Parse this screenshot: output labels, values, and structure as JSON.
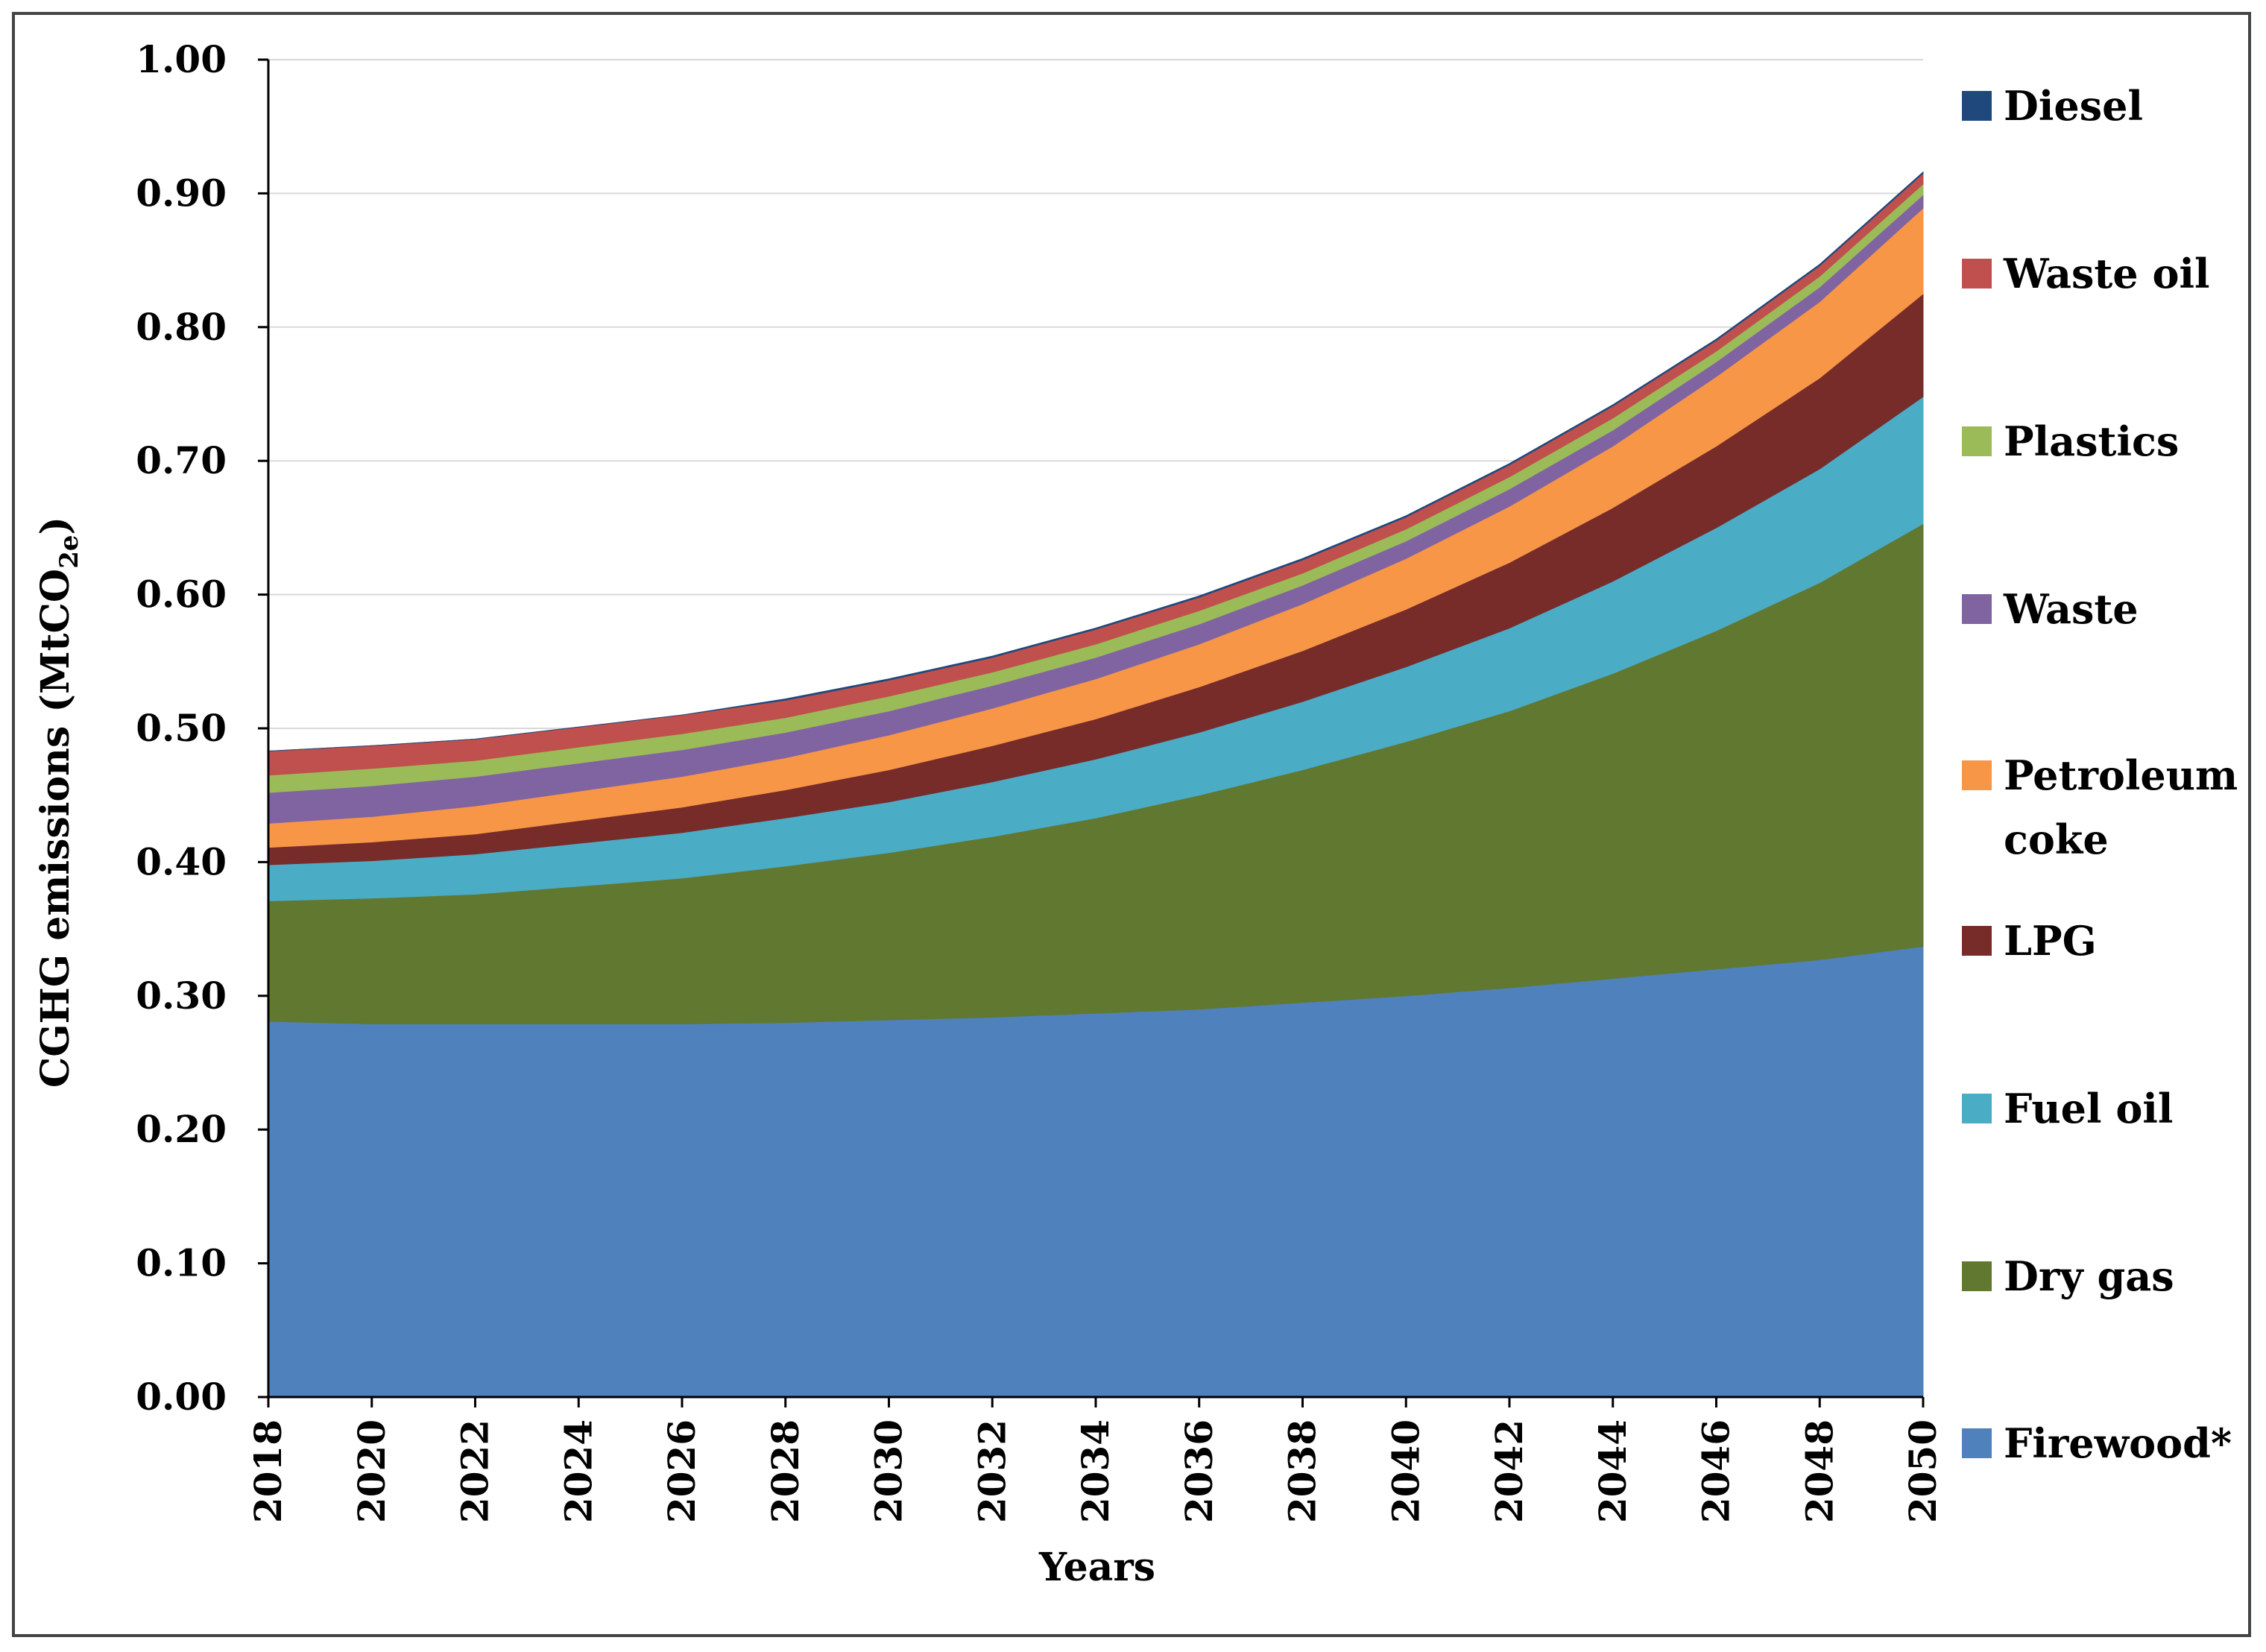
{
  "chart_data": {
    "type": "area",
    "stacked": true,
    "title": "",
    "xlabel": "Years",
    "ylabel": "CGHG emissions (MtCO",
    "ylabel_sub": "2e",
    "ylabel_close": ")",
    "ylim": [
      0,
      1.0
    ],
    "xlim": [
      2018,
      2050
    ],
    "grid": true,
    "legend_position": "right",
    "y_ticks": [
      "0.00",
      "0.10",
      "0.20",
      "0.30",
      "0.40",
      "0.50",
      "0.60",
      "0.70",
      "0.80",
      "0.90",
      "1.00"
    ],
    "x_ticks": [
      "2018",
      "2020",
      "2022",
      "2024",
      "2026",
      "2028",
      "2030",
      "2032",
      "2034",
      "2036",
      "2038",
      "2040",
      "2042",
      "2044",
      "2046",
      "2048",
      "2050"
    ],
    "x": [
      2018,
      2020,
      2022,
      2024,
      2026,
      2028,
      2030,
      2032,
      2034,
      2036,
      2038,
      2040,
      2042,
      2044,
      2046,
      2048,
      2050
    ],
    "series": [
      {
        "name": "Firewood*",
        "color": "#4F81BD",
        "values": [
          0.281,
          0.279,
          0.279,
          0.279,
          0.279,
          0.28,
          0.282,
          0.284,
          0.287,
          0.29,
          0.295,
          0.3,
          0.306,
          0.313,
          0.32,
          0.327,
          0.337
        ]
      },
      {
        "name": "Dry gas",
        "color": "#617830",
        "values": [
          0.09,
          0.094,
          0.097,
          0.103,
          0.109,
          0.117,
          0.125,
          0.135,
          0.146,
          0.16,
          0.174,
          0.19,
          0.207,
          0.228,
          0.253,
          0.282,
          0.316
        ]
      },
      {
        "name": "Fuel oil",
        "color": "#4BACC6",
        "values": [
          0.027,
          0.028,
          0.03,
          0.032,
          0.034,
          0.036,
          0.038,
          0.041,
          0.044,
          0.047,
          0.051,
          0.056,
          0.062,
          0.069,
          0.077,
          0.085,
          0.095
        ]
      },
      {
        "name": "LPG",
        "color": "#772C2A",
        "values": [
          0.013,
          0.014,
          0.015,
          0.017,
          0.019,
          0.021,
          0.024,
          0.027,
          0.03,
          0.034,
          0.038,
          0.043,
          0.049,
          0.055,
          0.061,
          0.068,
          0.077
        ]
      },
      {
        "name": "Petroleum coke",
        "color": "#F79646",
        "legend_lines": [
          "Petroleum",
          "coke"
        ],
        "values": [
          0.018,
          0.019,
          0.021,
          0.022,
          0.023,
          0.024,
          0.026,
          0.028,
          0.03,
          0.032,
          0.035,
          0.038,
          0.042,
          0.046,
          0.052,
          0.057,
          0.064
        ]
      },
      {
        "name": "Waste",
        "color": "#8064A2",
        "values": [
          0.023,
          0.023,
          0.022,
          0.021,
          0.02,
          0.019,
          0.018,
          0.017,
          0.016,
          0.015,
          0.014,
          0.013,
          0.013,
          0.012,
          0.011,
          0.011,
          0.01
        ]
      },
      {
        "name": "Plastics",
        "color": "#9BBB59",
        "values": [
          0.013,
          0.013,
          0.012,
          0.012,
          0.012,
          0.011,
          0.011,
          0.01,
          0.01,
          0.01,
          0.009,
          0.009,
          0.009,
          0.009,
          0.008,
          0.008,
          0.008
        ]
      },
      {
        "name": "Waste oil",
        "color": "#C0504D",
        "values": [
          0.018,
          0.017,
          0.016,
          0.015,
          0.014,
          0.013,
          0.012,
          0.011,
          0.011,
          0.01,
          0.01,
          0.009,
          0.009,
          0.009,
          0.008,
          0.008,
          0.008
        ]
      },
      {
        "name": "Diesel",
        "color": "#1F497D",
        "values": [
          0.0,
          0.0,
          0.0,
          0.0,
          0.0,
          0.001,
          0.001,
          0.001,
          0.001,
          0.001,
          0.001,
          0.001,
          0.001,
          0.001,
          0.001,
          0.001,
          0.001
        ]
      }
    ],
    "legend_order": [
      "Diesel",
      "Waste oil",
      "Plastics",
      "Waste",
      "Petroleum coke",
      "LPG",
      "Fuel oil",
      "Dry gas",
      "Firewood*"
    ]
  }
}
